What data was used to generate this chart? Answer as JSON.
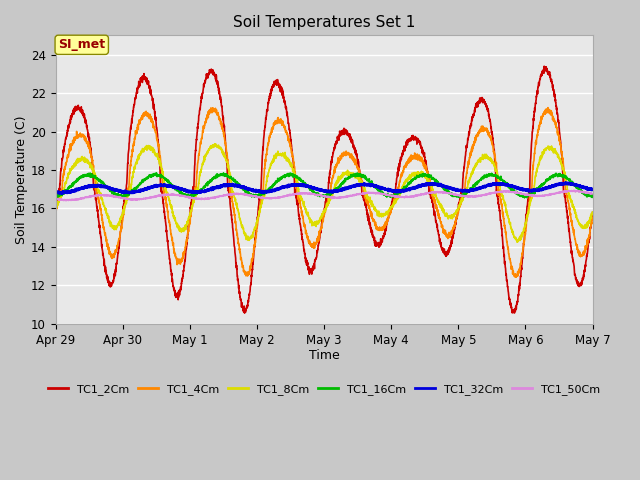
{
  "title": "Soil Temperatures Set 1",
  "xlabel": "Time",
  "ylabel": "Soil Temperature (C)",
  "annotation": "SI_met",
  "ylim": [
    10,
    25
  ],
  "yticks": [
    10,
    12,
    14,
    16,
    18,
    20,
    22,
    24
  ],
  "fig_bg_color": "#c8c8c8",
  "plot_bg_color": "#e8e8e8",
  "series_colors": {
    "TC1_2Cm": "#cc0000",
    "TC1_4Cm": "#ff8800",
    "TC1_8Cm": "#dddd00",
    "TC1_16Cm": "#00bb00",
    "TC1_32Cm": "#0000dd",
    "TC1_50Cm": "#dd88dd"
  },
  "xtick_labels": [
    "Apr 29",
    "Apr 30",
    "May 1",
    "May 2",
    "May 3",
    "May 4",
    "May 5",
    "May 6",
    "May 7"
  ]
}
